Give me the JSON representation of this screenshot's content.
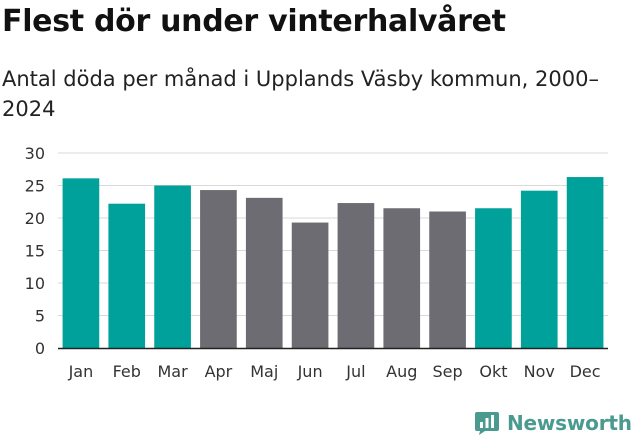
{
  "chart_data": {
    "type": "bar",
    "title": "Flest dör under vinterhalvåret",
    "subtitle": "Antal döda per månad i Upplands Väsby kommun, 2000–2024",
    "categories": [
      "Jan",
      "Feb",
      "Mar",
      "Apr",
      "Maj",
      "Jun",
      "Jul",
      "Aug",
      "Sep",
      "Okt",
      "Nov",
      "Dec"
    ],
    "values": [
      26.1,
      22.2,
      25.0,
      24.3,
      23.1,
      19.3,
      22.3,
      21.5,
      21.0,
      21.5,
      24.2,
      26.3
    ],
    "highlight": [
      true,
      true,
      true,
      false,
      false,
      false,
      false,
      false,
      false,
      true,
      true,
      true
    ],
    "ylim": [
      0,
      30
    ],
    "yticks": [
      0,
      5,
      10,
      15,
      20,
      25,
      30
    ],
    "xlabel": "",
    "ylabel": "",
    "grid": true
  },
  "colors": {
    "highlight": "#00a19a",
    "normal": "#6d6c72",
    "grid": "#d9d9d9",
    "axis": "#222222",
    "brand": "#4a9a90"
  },
  "brand": {
    "name": "Newsworthy",
    "icon": "bar-chart-bubble-icon"
  }
}
